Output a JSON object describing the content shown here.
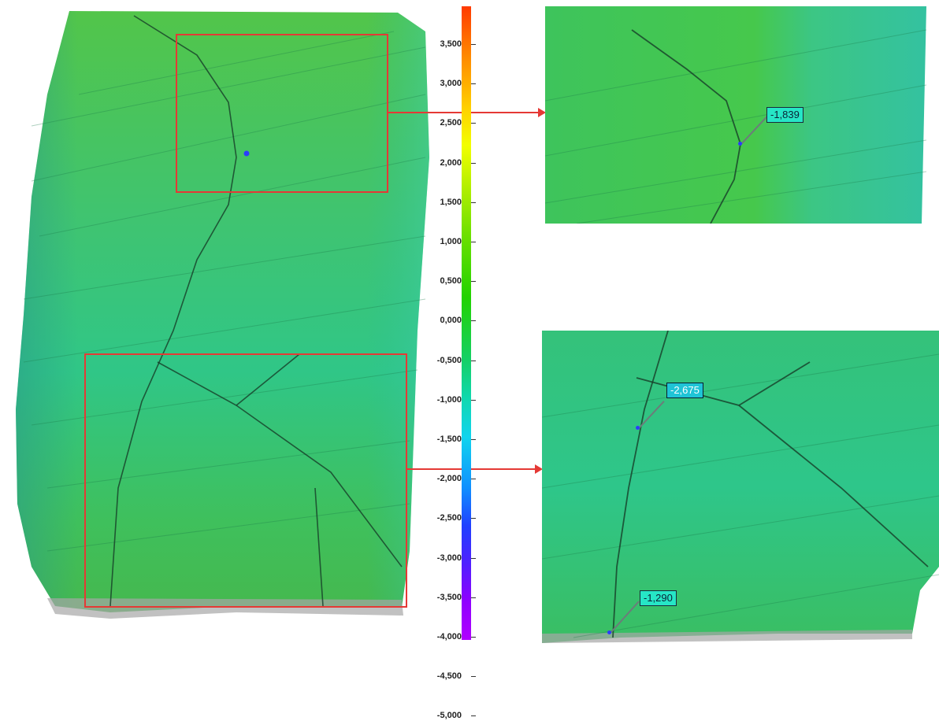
{
  "title": "",
  "scale": {
    "ticks": [
      "3,500",
      "3,000",
      "2,500",
      "2,000",
      "1,500",
      "1,000",
      "0,500",
      "0,000",
      "-0,500",
      "-1,000",
      "-1,500",
      "-2,000",
      "-2,500",
      "-3,000",
      "-3,500",
      "-4,000",
      "-4,500",
      "-5,000"
    ],
    "colors": {
      "high": "#ff3a00",
      "mid": "#22d200",
      "low": "#b000ff"
    }
  },
  "annotations": {
    "top": "-1,839",
    "bottom_a": "-2,675",
    "bottom_b": "-1,290"
  },
  "colors": {
    "highlight": "#e53935",
    "surface": "#3fc86a"
  }
}
